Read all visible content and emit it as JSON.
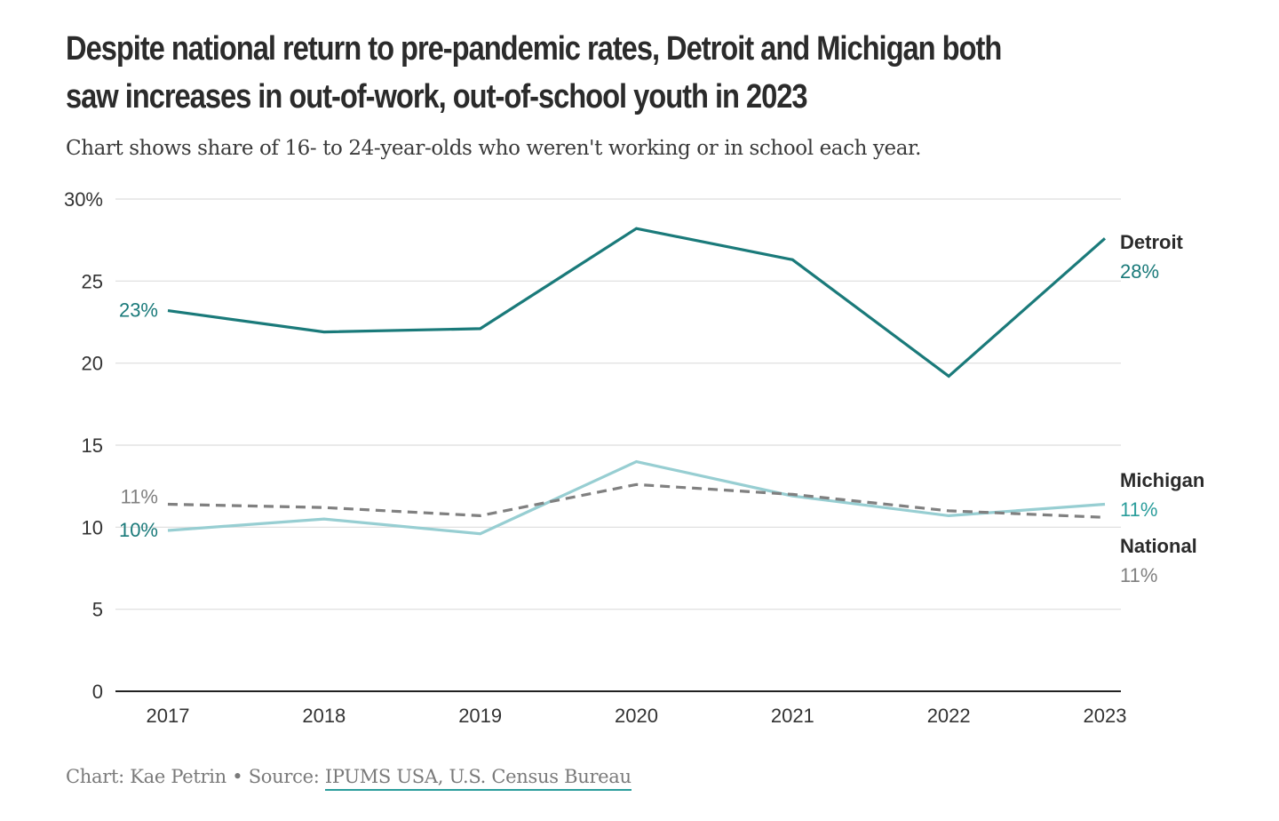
{
  "title": "Despite national return to pre-pandemic rates, Detroit and Michigan both saw increases in out-of-work, out-of-school youth in 2023",
  "subtitle": "Chart shows share of 16- to 24-year-olds who weren't working or in school each year.",
  "footer": {
    "credit": "Chart: Kae Petrin • Source: ",
    "source": "IPUMS USA, U.S. Census Bureau"
  },
  "colors": {
    "detroit": "#1a7a7a",
    "michigan": "#97ced2",
    "national": "#808080",
    "grid": "#dddddd",
    "axis": "#222222"
  },
  "chart_data": {
    "type": "line",
    "x": [
      "2017",
      "2018",
      "2019",
      "2020",
      "2021",
      "2022",
      "2023"
    ],
    "ylim": [
      0,
      30
    ],
    "yticks": [
      0,
      5,
      10,
      15,
      20,
      25,
      30
    ],
    "ytick_labels": [
      "0",
      "5",
      "10",
      "15",
      "20",
      "25",
      "30%"
    ],
    "grid": true,
    "legend": "direct labels at line ends",
    "series": [
      {
        "name": "Detroit",
        "color": "#1a7a7a",
        "dashed": false,
        "values": [
          23.2,
          21.9,
          22.1,
          28.2,
          26.3,
          19.2,
          27.6
        ],
        "start_label": "23%",
        "end_label": "28%"
      },
      {
        "name": "Michigan",
        "color": "#97ced2",
        "dashed": false,
        "values": [
          9.8,
          10.5,
          9.6,
          14.0,
          11.9,
          10.7,
          11.4
        ],
        "start_label": "10%",
        "end_label": "11%"
      },
      {
        "name": "National",
        "color": "#808080",
        "dashed": true,
        "values": [
          11.4,
          11.2,
          10.7,
          12.6,
          12.0,
          11.0,
          10.6
        ],
        "start_label": "11%",
        "end_label": "11%"
      }
    ]
  }
}
